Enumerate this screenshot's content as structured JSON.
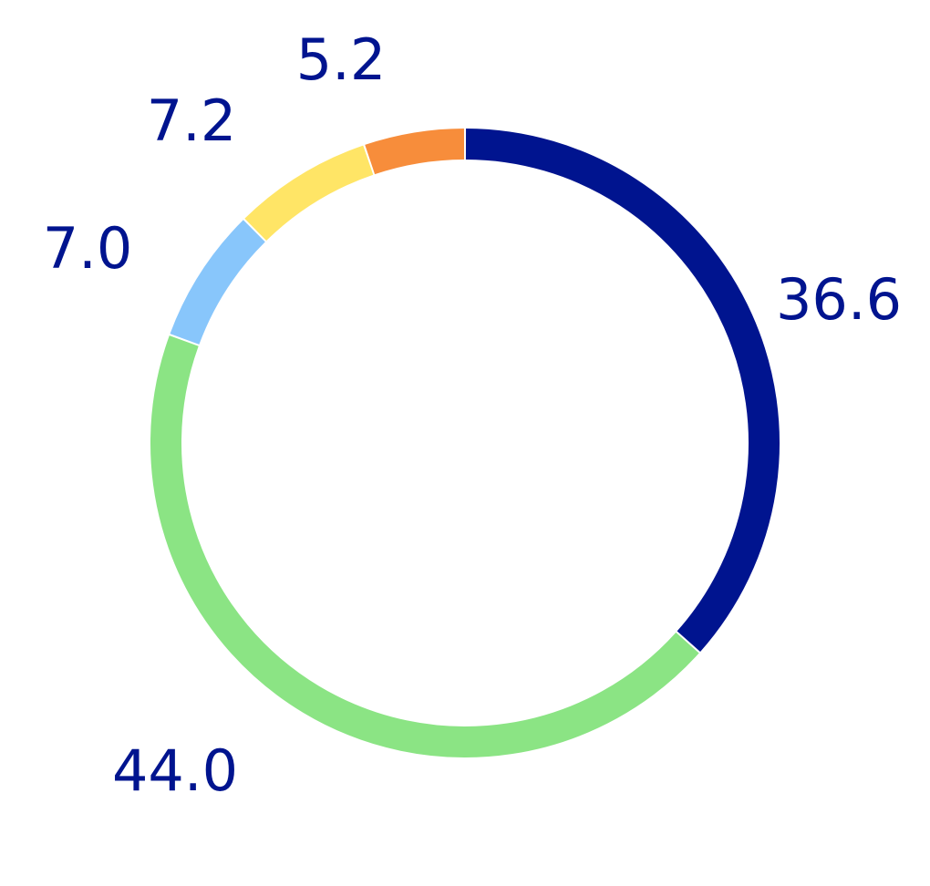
{
  "chart_data": {
    "type": "pie",
    "style": "donut",
    "label_color": "#00148f",
    "slices": [
      {
        "label": "36.6",
        "value": 36.6,
        "color": "#00148f"
      },
      {
        "label": "44.0",
        "value": 44.0,
        "color": "#8be484"
      },
      {
        "label": "7.0",
        "value": 7.0,
        "color": "#88c6fb"
      },
      {
        "label": "7.2",
        "value": 7.2,
        "color": "#ffe566"
      },
      {
        "label": "5.2",
        "value": 5.2,
        "color": "#f78d3b"
      }
    ]
  }
}
